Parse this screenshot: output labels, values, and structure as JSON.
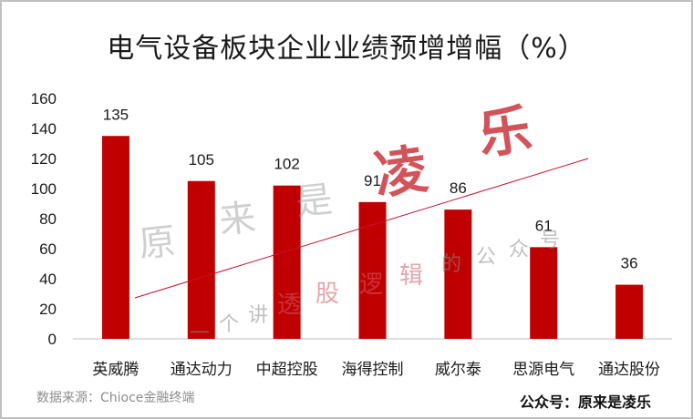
{
  "chart_data": {
    "type": "bar",
    "title": "电气设备板块企业业绩预增增幅（%）",
    "categories": [
      "英威腾",
      "通达动力",
      "中超控股",
      "海得控制",
      "威尔泰",
      "思源电气",
      "通达股份"
    ],
    "values": [
      135,
      105,
      102,
      91,
      86,
      61,
      36
    ],
    "data_labels": [
      "135",
      "105",
      "102",
      "91",
      "86",
      "61",
      "36"
    ],
    "ylim": [
      0,
      160
    ],
    "yticks": [
      "0",
      "20",
      "40",
      "60",
      "80",
      "100",
      "120",
      "140",
      "160"
    ],
    "bar_color": "#c00000",
    "trend_line_color": "#c8102e",
    "grid": false
  },
  "footer": {
    "source": "数据来源：Chioce金融终端",
    "brand": "公众号：原来是凌乐"
  },
  "watermark": {
    "chars_big": [
      "凌",
      "乐"
    ],
    "chars_gray": [
      "原",
      "来",
      "是"
    ],
    "phrase_gray_1": [
      "一",
      "个",
      "讲"
    ],
    "phrase_red": [
      "透",
      "股",
      "逻",
      "辑"
    ],
    "phrase_gray_2": [
      "的",
      "公",
      "众",
      "号"
    ]
  }
}
